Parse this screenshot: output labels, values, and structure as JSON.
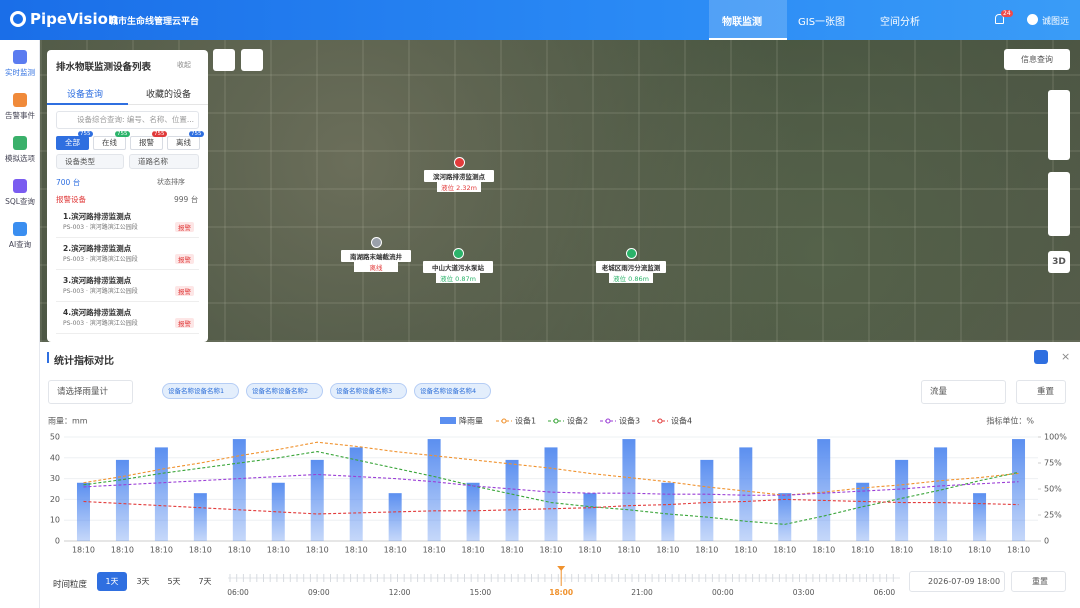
{
  "header": {
    "logo": "PipeVision",
    "subtitle": "城市生命线管理云平台",
    "nav": [
      "物联监测",
      "GIS一张图",
      "空间分析"
    ],
    "badge": "24",
    "user": "诚图远"
  },
  "sidebar": [
    "实时监测",
    "告警事件",
    "模拟选项",
    "SQL查询",
    "AI查询"
  ],
  "panel": {
    "title": "排水物联监测设备列表",
    "collapse": "收起",
    "tabs": [
      "设备查询",
      "收藏的设备"
    ],
    "search": "设备综合查询: 编号、名称、位置...",
    "filters": [
      {
        "label": "全部",
        "count": "755"
      },
      {
        "label": "在线",
        "count": "755"
      },
      {
        "label": "报警",
        "count": "755"
      },
      {
        "label": "离线",
        "count": "755"
      }
    ],
    "dropdowns": [
      "设备类型",
      "道路名称"
    ],
    "total": "700 台",
    "sort": "状态排序",
    "group": "报警设备",
    "group_count": "999 台",
    "items": [
      {
        "name": "1.滨河路排涝监测点",
        "location": "PS-003 · 滨河路滨江公园段",
        "status": "报警"
      },
      {
        "name": "2.滨河路排涝监测点",
        "location": "PS-003 · 滨河路滨江公园段",
        "status": "报警"
      },
      {
        "name": "3.滨河路排涝监测点",
        "location": "PS-003 · 滨河路滨江公园段",
        "status": "报警"
      },
      {
        "name": "4.滨河路排涝监测点",
        "location": "PS-003 · 滨河路滨江公园段",
        "status": "报警"
      }
    ]
  },
  "map": {
    "info": "信息查询",
    "view3d": "3D",
    "markers": [
      {
        "name": "滨河路排涝监测点",
        "status": "液位 2.32m"
      },
      {
        "name": "南湖路末端截流井",
        "status": "离线"
      },
      {
        "name": "中山大道污水泵站",
        "status": "液位 0.87m"
      },
      {
        "name": "老城区雨污分流监测",
        "status": "液位 0.86m"
      }
    ]
  },
  "stats": {
    "title": "统计指标对比",
    "gauge": "请选择雨量计",
    "tags": [
      "设备名称设备名称1",
      "设备名称设备名称2",
      "设备名称设备名称3",
      "设备名称设备名称4"
    ],
    "metric": "流量",
    "reset": "重置"
  },
  "chart_data": {
    "type": "combo",
    "y_label": "雨量：mm",
    "y2_label": "指标单位：%",
    "legend": "top",
    "categories": [
      "18:10",
      "18:10",
      "18:10",
      "18:10",
      "18:10",
      "18:10",
      "18:10",
      "18:10",
      "18:10",
      "18:10",
      "18:10",
      "18:10",
      "18:10",
      "18:10",
      "18:10",
      "18:10",
      "18:10",
      "18:10",
      "18:10",
      "18:10",
      "18:10",
      "18:10",
      "18:10",
      "18:10",
      "18:10"
    ],
    "series": [
      {
        "name": "降雨量",
        "type": "bar",
        "color": "#5b8ff0",
        "values": [
          28,
          39,
          45,
          23,
          49,
          28,
          39,
          45,
          23,
          49,
          28,
          39,
          45,
          23,
          49,
          28,
          39,
          45,
          23,
          49,
          28,
          39,
          45,
          23,
          49
        ]
      },
      {
        "name": "设备1",
        "type": "line",
        "axis": "y2",
        "color": "#f0922e",
        "values": [
          56,
          62,
          69,
          75,
          82,
          88,
          95,
          91,
          86,
          82,
          78,
          74,
          70,
          65,
          61,
          57,
          52,
          48,
          44,
          47,
          51,
          54,
          58,
          61,
          65
        ]
      },
      {
        "name": "设备2",
        "type": "line",
        "axis": "y2",
        "color": "#3aa53a",
        "values": [
          54,
          59,
          65,
          70,
          75,
          80,
          86,
          78,
          70,
          62,
          53,
          45,
          37,
          33,
          30,
          26,
          23,
          19,
          16,
          24,
          33,
          41,
          49,
          58,
          66
        ]
      },
      {
        "name": "设备3",
        "type": "line",
        "axis": "y2",
        "color": "#9b3fd6",
        "values": [
          52,
          54,
          56,
          58,
          60,
          62,
          64,
          62,
          60,
          57,
          53,
          50,
          47,
          46,
          46,
          45,
          45,
          44,
          44,
          46,
          48,
          50,
          53,
          55,
          57
        ]
      },
      {
        "name": "设备4",
        "type": "line",
        "axis": "y2",
        "color": "#e23b3b",
        "values": [
          38,
          36,
          34,
          32,
          30,
          28,
          26,
          27,
          28,
          29,
          29,
          30,
          31,
          32,
          34,
          35,
          37,
          38,
          40,
          39,
          38,
          37,
          37,
          36,
          35
        ]
      }
    ],
    "ylim": [
      0,
      50
    ],
    "yticks": [
      0,
      10,
      20,
      30,
      40,
      50
    ],
    "y2lim": [
      0,
      100
    ],
    "y2ticks": [
      0,
      {
        "value": 25,
        "label": "25%"
      },
      {
        "value": 50,
        "label": "50%"
      },
      {
        "value": 75,
        "label": "75%"
      },
      {
        "value": 100,
        "label": "100%"
      }
    ]
  },
  "timebar": {
    "label": "时间粒度",
    "spans": [
      "1天",
      "3天",
      "5天",
      "7天"
    ],
    "ticks": [
      "06:00",
      "09:00",
      "12:00",
      "15:00",
      "18:00",
      "21:00",
      "00:00",
      "03:00",
      "06:00"
    ],
    "date": "2026-07-09 18:00",
    "reset": "重置"
  }
}
